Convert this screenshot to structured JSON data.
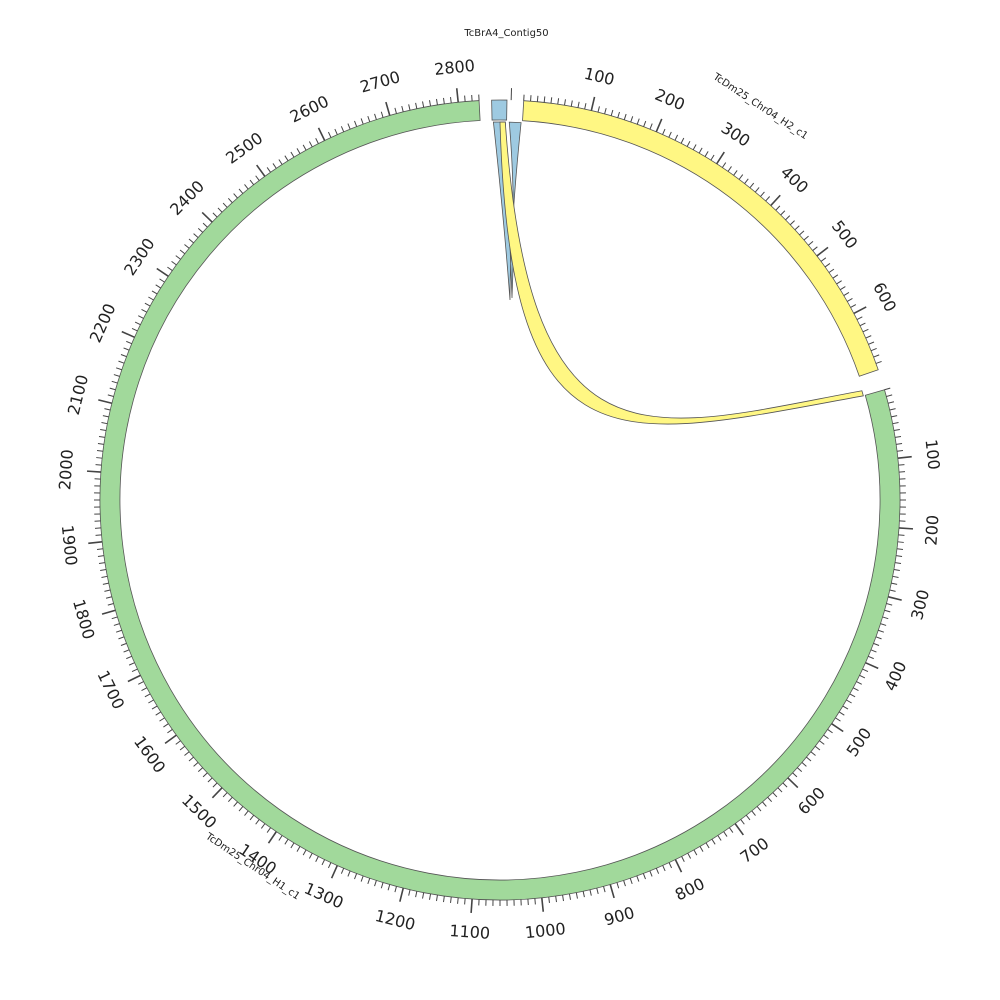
{
  "chart_data": {
    "type": "chord",
    "segments": [
      {
        "name": "TcBrA4_Contig50",
        "color": "#9ECAE1",
        "length": 12,
        "tick_labels": []
      },
      {
        "name": "TcDm25_Chr04_H2_c1",
        "color": "#FFF783",
        "length": 690,
        "tick_labels": [
          "100",
          "200",
          "300",
          "400",
          "500",
          "600"
        ]
      },
      {
        "name": "TcDm25_Chr04_H1_c1",
        "color": "#A1D99B",
        "length": 2830,
        "tick_labels": [
          "100",
          "200",
          "300",
          "400",
          "500",
          "600",
          "700",
          "800",
          "900",
          "1000",
          "1100",
          "1200",
          "1300",
          "1400",
          "1500",
          "1600",
          "1700",
          "1800",
          "1900",
          "2000",
          "2100",
          "2200",
          "2300",
          "2400",
          "2500",
          "2600",
          "2700",
          "2800"
        ]
      }
    ],
    "links": [
      {
        "source": "TcBrA4_Contig50",
        "target": "TcDm25_Chr04_H2_c1",
        "color": "#9ECAE1"
      },
      {
        "source": "TcDm25_Chr04_H2_c1",
        "target": "TcDm25_Chr04_H1_c1",
        "color": "#FFF783"
      }
    ],
    "tick_interval": 100,
    "minor_tick_interval": 10
  }
}
